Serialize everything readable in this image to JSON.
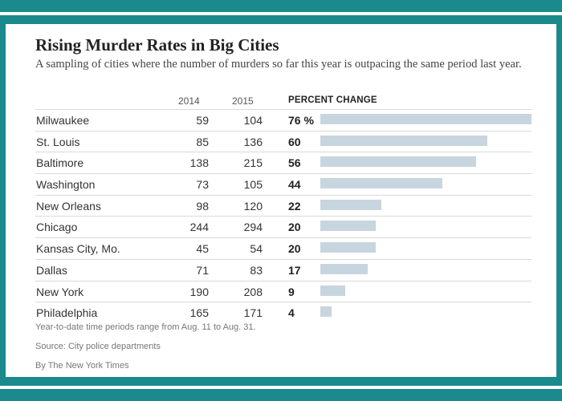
{
  "header": {
    "title": "Rising Murder Rates in Big Cities",
    "subtitle": "A sampling of cities where the number of murders so far this year is outpacing the same period last year."
  },
  "columns": {
    "y2014": "2014",
    "y2015": "2015",
    "pct": "PERCENT CHANGE"
  },
  "chart_data": {
    "type": "bar",
    "title": "Rising Murder Rates in Big Cities",
    "categories": [
      "Milwaukee",
      "St. Louis",
      "Baltimore",
      "Washington",
      "New Orleans",
      "Chicago",
      "Kansas City, Mo.",
      "Dallas",
      "New York",
      "Philadelphia"
    ],
    "values_2014": [
      59,
      85,
      138,
      73,
      98,
      244,
      45,
      71,
      190,
      165
    ],
    "values_2015": [
      104,
      136,
      215,
      105,
      120,
      294,
      54,
      83,
      208,
      171
    ],
    "values": [
      76,
      60,
      56,
      44,
      22,
      20,
      20,
      17,
      9,
      4
    ],
    "pct_labels": [
      "76 %",
      "60",
      "56",
      "44",
      "22",
      "20",
      "20",
      "17",
      "9",
      "4"
    ],
    "value_label": "PERCENT CHANGE",
    "orientation": "horizontal",
    "bar_color": "#c7d5df"
  },
  "notes": {
    "period": "Year-to-date time periods range from Aug. 11 to Aug. 31.",
    "source": "Source: City police departments",
    "credit": "By The New York Times"
  }
}
